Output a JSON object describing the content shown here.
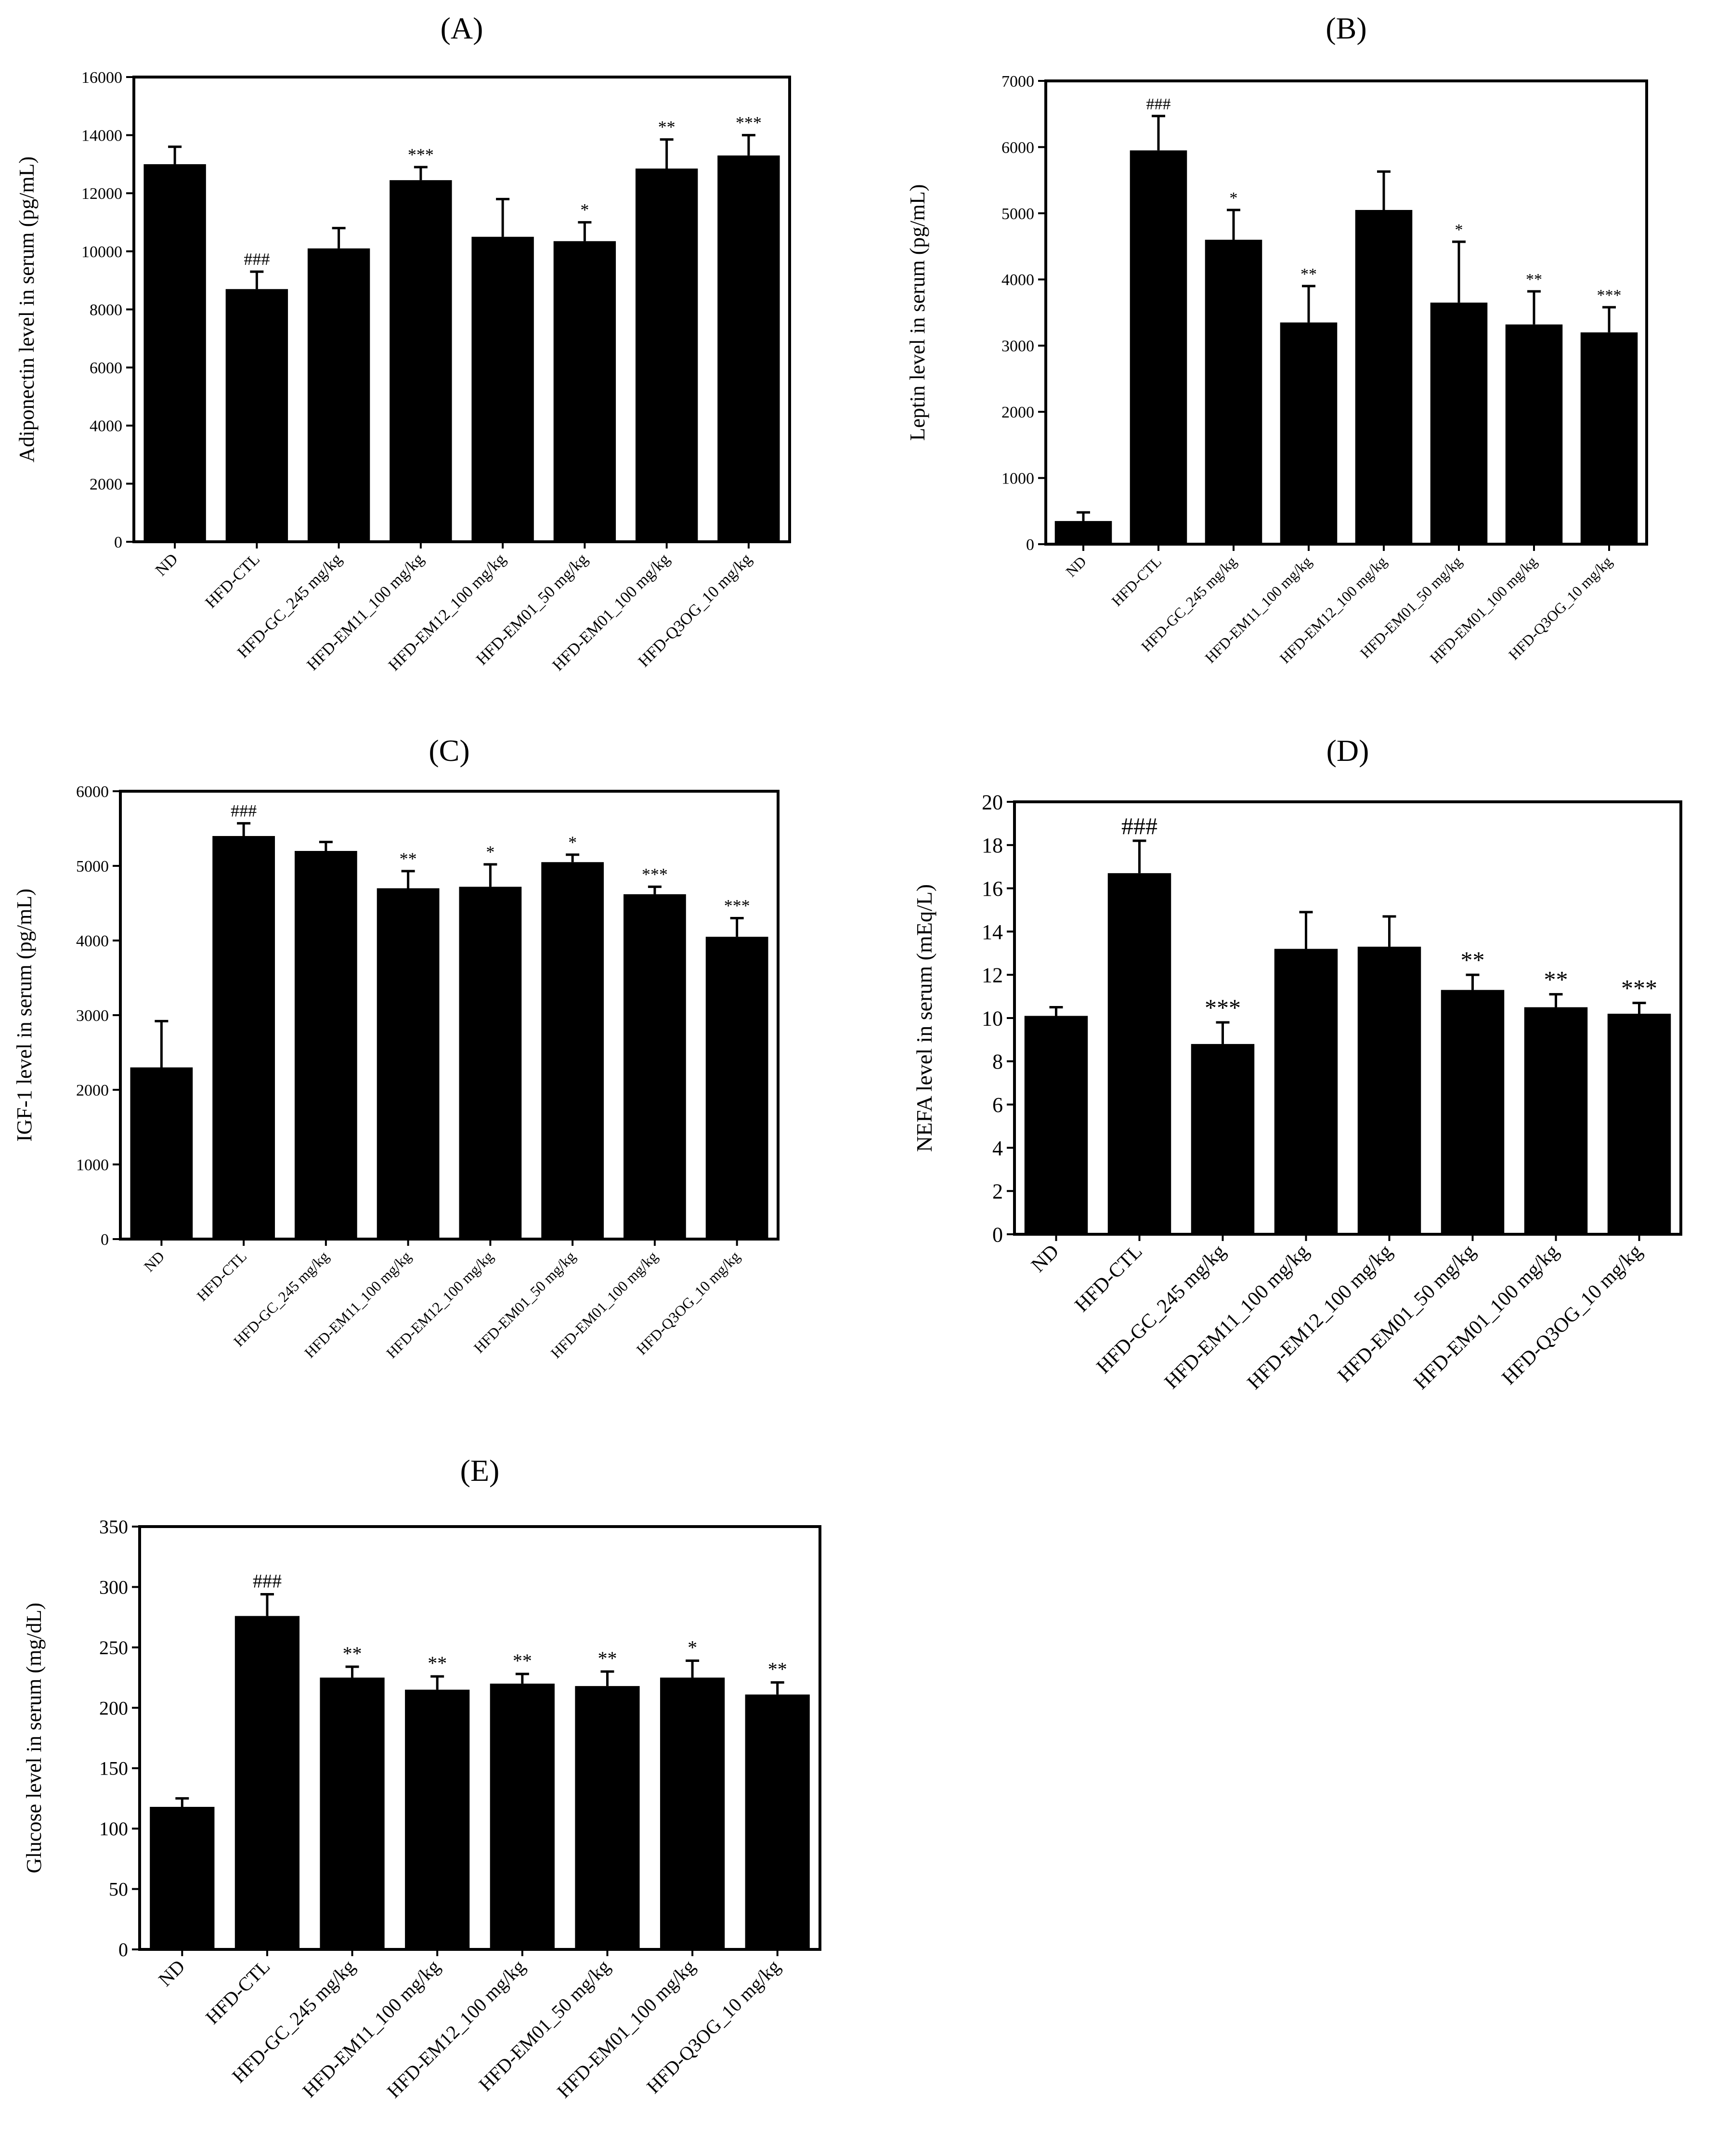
{
  "categories": [
    "ND",
    "HFD-CTL",
    "HFD-GC_245 mg/kg",
    "HFD-EM11_100 mg/kg",
    "HFD-EM12_100 mg/kg",
    "HFD-EM01_50 mg/kg",
    "HFD-EM01_100 mg/kg",
    "HFD-Q3OG_10 mg/kg"
  ],
  "chart_data": [
    {
      "panel": "(A)",
      "type": "bar",
      "ylabel": "Adiponectin level in serum (pg/mL)",
      "ylim": [
        0,
        16000
      ],
      "yticks": [
        0,
        2000,
        4000,
        6000,
        8000,
        10000,
        12000,
        14000,
        16000
      ],
      "values": [
        13000,
        8700,
        10100,
        12450,
        10500,
        10350,
        12850,
        13300
      ],
      "errors": [
        600,
        600,
        700,
        450,
        1300,
        650,
        1000,
        700
      ],
      "annotations": [
        "",
        "###",
        "",
        "***",
        "",
        "*",
        "**",
        "***"
      ]
    },
    {
      "panel": "(B)",
      "type": "bar",
      "ylabel": "Leptin level in serum (pg/mL)",
      "ylim": [
        0,
        7000
      ],
      "yticks": [
        0,
        1000,
        2000,
        3000,
        4000,
        5000,
        6000,
        7000
      ],
      "values": [
        350,
        5950,
        4600,
        3350,
        5050,
        3650,
        3320,
        3200
      ],
      "errors": [
        130,
        520,
        450,
        550,
        580,
        920,
        500,
        380
      ],
      "annotations": [
        "",
        "###",
        "*",
        "**",
        "",
        "*",
        "**",
        "***"
      ]
    },
    {
      "panel": "(C)",
      "type": "bar",
      "ylabel": "IGF-1 level in serum (pg/mL)",
      "ylim": [
        0,
        6000
      ],
      "yticks": [
        0,
        1000,
        2000,
        3000,
        4000,
        5000,
        6000
      ],
      "values": [
        2300,
        5400,
        5200,
        4700,
        4720,
        5050,
        4620,
        4050
      ],
      "errors": [
        620,
        170,
        120,
        230,
        300,
        100,
        100,
        250
      ],
      "annotations": [
        "",
        "###",
        "",
        "**",
        "*",
        "*",
        "***",
        "***"
      ]
    },
    {
      "panel": "(D)",
      "type": "bar",
      "ylabel": "NEFA level in serum (mEq/L)",
      "ylim": [
        0,
        20
      ],
      "yticks": [
        0,
        2,
        4,
        6,
        8,
        10,
        12,
        14,
        16,
        18,
        20
      ],
      "values": [
        10.1,
        16.7,
        8.8,
        13.2,
        13.3,
        11.3,
        10.5,
        10.2
      ],
      "errors": [
        0.4,
        1.5,
        1.0,
        1.7,
        1.4,
        0.7,
        0.6,
        0.5
      ],
      "annotations": [
        "",
        "###",
        "***",
        "",
        "",
        "**",
        "**",
        "***"
      ]
    },
    {
      "panel": "(E)",
      "type": "bar",
      "ylabel": "Glucose level in serum (mg/dL)",
      "ylim": [
        0,
        350
      ],
      "yticks": [
        0,
        50,
        100,
        150,
        200,
        250,
        300,
        350
      ],
      "values": [
        118,
        276,
        225,
        215,
        220,
        218,
        225,
        211
      ],
      "errors": [
        7,
        18,
        9,
        11,
        8,
        12,
        14,
        10
      ],
      "annotations": [
        "",
        "###",
        "**",
        "**",
        "**",
        "**",
        "*",
        "**"
      ]
    }
  ]
}
